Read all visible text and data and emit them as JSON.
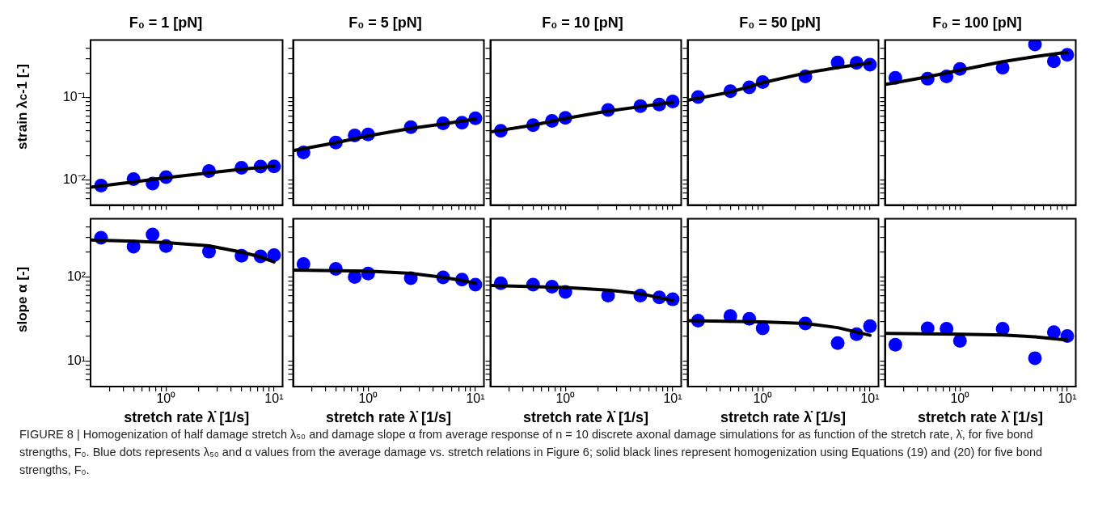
{
  "chart_data": [
    {
      "type": "scatter",
      "title": "F₀ = 1 [pN]",
      "ylabel": "strain λ$_{c}$-1 [-]",
      "log": "xy",
      "tick_labels": "y",
      "xlim": [
        0.2,
        12
      ],
      "ylim": [
        0.005,
        0.5
      ],
      "xticks": [
        {
          "value": 0.3,
          "label": null
        },
        {
          "value": 0.4,
          "label": null
        },
        {
          "value": 0.5,
          "label": null
        },
        {
          "value": 0.6,
          "label": null
        },
        {
          "value": 0.7,
          "label": null
        },
        {
          "value": 0.8,
          "label": null
        },
        {
          "value": 0.9,
          "label": null
        },
        {
          "value": 1,
          "label": null
        },
        {
          "value": 2,
          "label": null
        },
        {
          "value": 3,
          "label": null
        },
        {
          "value": 4,
          "label": null
        },
        {
          "value": 5,
          "label": null
        },
        {
          "value": 6,
          "label": null
        },
        {
          "value": 7,
          "label": null
        },
        {
          "value": 8,
          "label": null
        },
        {
          "value": 9,
          "label": null
        },
        {
          "value": 10,
          "label": null
        }
      ],
      "yticks": [
        {
          "value": 0.006,
          "label": null
        },
        {
          "value": 0.007,
          "label": null
        },
        {
          "value": 0.008,
          "label": null
        },
        {
          "value": 0.009,
          "label": null
        },
        {
          "value": 0.01,
          "label": "10⁻²"
        },
        {
          "value": 0.02,
          "label": null
        },
        {
          "value": 0.03,
          "label": null
        },
        {
          "value": 0.04,
          "label": null
        },
        {
          "value": 0.05,
          "label": null
        },
        {
          "value": 0.06,
          "label": null
        },
        {
          "value": 0.07,
          "label": null
        },
        {
          "value": 0.08,
          "label": null
        },
        {
          "value": 0.09,
          "label": null
        },
        {
          "value": 0.1,
          "label": "10⁻¹"
        },
        {
          "value": 0.2,
          "label": null
        },
        {
          "value": 0.3,
          "label": null
        },
        {
          "value": 0.4,
          "label": null
        }
      ],
      "x": [
        0.25,
        0.5,
        0.75,
        1,
        2.5,
        5,
        7.5,
        10
      ],
      "series": [
        {
          "type": "scatter",
          "color": "#0000ff",
          "marker": "circle",
          "values": [
            0.0086,
            0.0103,
            0.0091,
            0.0109,
            0.0129,
            0.0141,
            0.0146,
            0.0147
          ]
        },
        {
          "type": "line",
          "color": "#000000",
          "marker": "none",
          "line_style": "solid",
          "x": [
            0.2,
            0.5,
            1,
            2.5,
            5,
            10
          ],
          "values": [
            0.0082,
            0.0095,
            0.0107,
            0.0123,
            0.0136,
            0.0148
          ]
        }
      ],
      "annotations": [
        "FIGURE 8 | Homogenization of half damage stretch λ₅₀ and damage slope α from average response of n = 10 discrete axonal damage simulations for as function of the stretch rate, λ̇, for five bond strengths, F₀. Blue dots represents λ₅₀ and α values from the average damage vs. stretch relations in Figure 6; solid black lines represent homogenization using Equations (19) and (20) for five bond strengths, F₀."
      ]
    },
    {
      "type": "scatter",
      "title": "F₀ = 5 [pN]",
      "log": "xy",
      "tick_labels": false,
      "xlim": [
        0.2,
        12
      ],
      "ylim": [
        0.005,
        0.5
      ],
      "xticks": [
        {
          "value": 0.3,
          "label": null
        },
        {
          "value": 0.4,
          "label": null
        },
        {
          "value": 0.5,
          "label": null
        },
        {
          "value": 0.6,
          "label": null
        },
        {
          "value": 0.7,
          "label": null
        },
        {
          "value": 0.8,
          "label": null
        },
        {
          "value": 0.9,
          "label": null
        },
        {
          "value": 1,
          "label": null
        },
        {
          "value": 2,
          "label": null
        },
        {
          "value": 3,
          "label": null
        },
        {
          "value": 4,
          "label": null
        },
        {
          "value": 5,
          "label": null
        },
        {
          "value": 6,
          "label": null
        },
        {
          "value": 7,
          "label": null
        },
        {
          "value": 8,
          "label": null
        },
        {
          "value": 9,
          "label": null
        },
        {
          "value": 10,
          "label": null
        }
      ],
      "yticks": [
        {
          "value": 0.006,
          "label": null
        },
        {
          "value": 0.007,
          "label": null
        },
        {
          "value": 0.008,
          "label": null
        },
        {
          "value": 0.009,
          "label": null
        },
        {
          "value": 0.01,
          "label": null
        },
        {
          "value": 0.02,
          "label": null
        },
        {
          "value": 0.03,
          "label": null
        },
        {
          "value": 0.04,
          "label": null
        },
        {
          "value": 0.05,
          "label": null
        },
        {
          "value": 0.06,
          "label": null
        },
        {
          "value": 0.07,
          "label": null
        },
        {
          "value": 0.08,
          "label": null
        },
        {
          "value": 0.09,
          "label": null
        },
        {
          "value": 0.1,
          "label": null
        },
        {
          "value": 0.2,
          "label": null
        },
        {
          "value": 0.3,
          "label": null
        },
        {
          "value": 0.4,
          "label": null
        }
      ],
      "x": [
        0.25,
        0.5,
        0.75,
        1,
        2.5,
        5,
        7.5,
        10
      ],
      "series": [
        {
          "type": "scatter",
          "color": "#0000ff",
          "marker": "circle",
          "values": [
            0.0217,
            0.0287,
            0.0349,
            0.0358,
            0.044,
            0.049,
            0.0499,
            0.0565
          ]
        },
        {
          "type": "line",
          "color": "#000000",
          "marker": "none",
          "line_style": "solid",
          "x": [
            0.2,
            0.5,
            1,
            2.5,
            5,
            10
          ],
          "values": [
            0.0228,
            0.0285,
            0.0345,
            0.0425,
            0.048,
            0.055
          ]
        }
      ]
    },
    {
      "type": "scatter",
      "title": "F₀ = 10 [pN]",
      "log": "xy",
      "tick_labels": false,
      "xlim": [
        0.2,
        12
      ],
      "ylim": [
        0.005,
        0.5
      ],
      "xticks": [
        {
          "value": 0.3,
          "label": null
        },
        {
          "value": 0.4,
          "label": null
        },
        {
          "value": 0.5,
          "label": null
        },
        {
          "value": 0.6,
          "label": null
        },
        {
          "value": 0.7,
          "label": null
        },
        {
          "value": 0.8,
          "label": null
        },
        {
          "value": 0.9,
          "label": null
        },
        {
          "value": 1,
          "label": null
        },
        {
          "value": 2,
          "label": null
        },
        {
          "value": 3,
          "label": null
        },
        {
          "value": 4,
          "label": null
        },
        {
          "value": 5,
          "label": null
        },
        {
          "value": 6,
          "label": null
        },
        {
          "value": 7,
          "label": null
        },
        {
          "value": 8,
          "label": null
        },
        {
          "value": 9,
          "label": null
        },
        {
          "value": 10,
          "label": null
        }
      ],
      "yticks": [
        {
          "value": 0.006,
          "label": null
        },
        {
          "value": 0.007,
          "label": null
        },
        {
          "value": 0.008,
          "label": null
        },
        {
          "value": 0.009,
          "label": null
        },
        {
          "value": 0.01,
          "label": null
        },
        {
          "value": 0.02,
          "label": null
        },
        {
          "value": 0.03,
          "label": null
        },
        {
          "value": 0.04,
          "label": null
        },
        {
          "value": 0.05,
          "label": null
        },
        {
          "value": 0.06,
          "label": null
        },
        {
          "value": 0.07,
          "label": null
        },
        {
          "value": 0.08,
          "label": null
        },
        {
          "value": 0.09,
          "label": null
        },
        {
          "value": 0.1,
          "label": null
        },
        {
          "value": 0.2,
          "label": null
        },
        {
          "value": 0.3,
          "label": null
        },
        {
          "value": 0.4,
          "label": null
        }
      ],
      "x": [
        0.25,
        0.5,
        0.75,
        1,
        2.5,
        5,
        7.5,
        10
      ],
      "series": [
        {
          "type": "scatter",
          "color": "#0000ff",
          "marker": "circle",
          "values": [
            0.0397,
            0.0466,
            0.0524,
            0.057,
            0.0712,
            0.0792,
            0.0826,
            0.0899
          ]
        },
        {
          "type": "line",
          "color": "#000000",
          "marker": "none",
          "line_style": "solid",
          "x": [
            0.2,
            0.5,
            1,
            2.5,
            5,
            10
          ],
          "values": [
            0.0385,
            0.0465,
            0.056,
            0.069,
            0.078,
            0.088
          ]
        }
      ]
    },
    {
      "type": "scatter",
      "title": "F₀ = 50 [pN]",
      "log": "xy",
      "tick_labels": false,
      "xlim": [
        0.2,
        12
      ],
      "ylim": [
        0.005,
        0.5
      ],
      "xticks": [
        {
          "value": 0.3,
          "label": null
        },
        {
          "value": 0.4,
          "label": null
        },
        {
          "value": 0.5,
          "label": null
        },
        {
          "value": 0.6,
          "label": null
        },
        {
          "value": 0.7,
          "label": null
        },
        {
          "value": 0.8,
          "label": null
        },
        {
          "value": 0.9,
          "label": null
        },
        {
          "value": 1,
          "label": null
        },
        {
          "value": 2,
          "label": null
        },
        {
          "value": 3,
          "label": null
        },
        {
          "value": 4,
          "label": null
        },
        {
          "value": 5,
          "label": null
        },
        {
          "value": 6,
          "label": null
        },
        {
          "value": 7,
          "label": null
        },
        {
          "value": 8,
          "label": null
        },
        {
          "value": 9,
          "label": null
        },
        {
          "value": 10,
          "label": null
        }
      ],
      "yticks": [
        {
          "value": 0.006,
          "label": null
        },
        {
          "value": 0.007,
          "label": null
        },
        {
          "value": 0.008,
          "label": null
        },
        {
          "value": 0.009,
          "label": null
        },
        {
          "value": 0.01,
          "label": null
        },
        {
          "value": 0.02,
          "label": null
        },
        {
          "value": 0.03,
          "label": null
        },
        {
          "value": 0.04,
          "label": null
        },
        {
          "value": 0.05,
          "label": null
        },
        {
          "value": 0.06,
          "label": null
        },
        {
          "value": 0.07,
          "label": null
        },
        {
          "value": 0.08,
          "label": null
        },
        {
          "value": 0.09,
          "label": null
        },
        {
          "value": 0.1,
          "label": null
        },
        {
          "value": 0.2,
          "label": null
        },
        {
          "value": 0.3,
          "label": null
        },
        {
          "value": 0.4,
          "label": null
        }
      ],
      "x": [
        0.25,
        0.5,
        0.75,
        1,
        2.5,
        5,
        7.5,
        10
      ],
      "series": [
        {
          "type": "scatter",
          "color": "#0000ff",
          "marker": "circle",
          "values": [
            0.102,
            0.12,
            0.134,
            0.155,
            0.181,
            0.268,
            0.265,
            0.252
          ]
        },
        {
          "type": "line",
          "color": "#000000",
          "marker": "none",
          "line_style": "solid",
          "x": [
            0.2,
            0.5,
            1,
            2.5,
            5,
            10
          ],
          "values": [
            0.093,
            0.117,
            0.152,
            0.199,
            0.233,
            0.265
          ]
        }
      ]
    },
    {
      "type": "scatter",
      "title": "F₀ = 100 [pN]",
      "log": "xy",
      "tick_labels": false,
      "xlim": [
        0.2,
        12
      ],
      "ylim": [
        0.005,
        0.5
      ],
      "xticks": [
        {
          "value": 0.3,
          "label": null
        },
        {
          "value": 0.4,
          "label": null
        },
        {
          "value": 0.5,
          "label": null
        },
        {
          "value": 0.6,
          "label": null
        },
        {
          "value": 0.7,
          "label": null
        },
        {
          "value": 0.8,
          "label": null
        },
        {
          "value": 0.9,
          "label": null
        },
        {
          "value": 1,
          "label": null
        },
        {
          "value": 2,
          "label": null
        },
        {
          "value": 3,
          "label": null
        },
        {
          "value": 4,
          "label": null
        },
        {
          "value": 5,
          "label": null
        },
        {
          "value": 6,
          "label": null
        },
        {
          "value": 7,
          "label": null
        },
        {
          "value": 8,
          "label": null
        },
        {
          "value": 9,
          "label": null
        },
        {
          "value": 10,
          "label": null
        }
      ],
      "yticks": [
        {
          "value": 0.006,
          "label": null
        },
        {
          "value": 0.007,
          "label": null
        },
        {
          "value": 0.008,
          "label": null
        },
        {
          "value": 0.009,
          "label": null
        },
        {
          "value": 0.01,
          "label": null
        },
        {
          "value": 0.02,
          "label": null
        },
        {
          "value": 0.03,
          "label": null
        },
        {
          "value": 0.04,
          "label": null
        },
        {
          "value": 0.05,
          "label": null
        },
        {
          "value": 0.06,
          "label": null
        },
        {
          "value": 0.07,
          "label": null
        },
        {
          "value": 0.08,
          "label": null
        },
        {
          "value": 0.09,
          "label": null
        },
        {
          "value": 0.1,
          "label": null
        },
        {
          "value": 0.2,
          "label": null
        },
        {
          "value": 0.3,
          "label": null
        },
        {
          "value": 0.4,
          "label": null
        }
      ],
      "x": [
        0.25,
        0.5,
        0.75,
        1,
        2.5,
        5,
        7.5,
        10
      ],
      "series": [
        {
          "type": "scatter",
          "color": "#0000ff",
          "marker": "circle",
          "values": [
            0.174,
            0.17,
            0.181,
            0.224,
            0.231,
            0.442,
            0.277,
            0.332
          ]
        },
        {
          "type": "line",
          "color": "#000000",
          "marker": "none",
          "line_style": "solid",
          "x": [
            0.2,
            0.5,
            1,
            2.5,
            5,
            10
          ],
          "values": [
            0.145,
            0.179,
            0.216,
            0.274,
            0.315,
            0.357
          ]
        }
      ]
    },
    {
      "type": "scatter",
      "xlabel": "stretch rate λ̇ [1/s]",
      "ylabel": "slope α [-]",
      "log": "xy",
      "xlim": [
        0.2,
        12
      ],
      "ylim": [
        5,
        500
      ],
      "xticks": [
        {
          "value": 0.3,
          "label": null
        },
        {
          "value": 0.4,
          "label": null
        },
        {
          "value": 0.5,
          "label": null
        },
        {
          "value": 0.6,
          "label": null
        },
        {
          "value": 0.7,
          "label": null
        },
        {
          "value": 0.8,
          "label": null
        },
        {
          "value": 0.9,
          "label": null
        },
        {
          "value": 1,
          "label": "10⁰"
        },
        {
          "value": 2,
          "label": null
        },
        {
          "value": 3,
          "label": null
        },
        {
          "value": 4,
          "label": null
        },
        {
          "value": 5,
          "label": null
        },
        {
          "value": 6,
          "label": null
        },
        {
          "value": 7,
          "label": null
        },
        {
          "value": 8,
          "label": null
        },
        {
          "value": 9,
          "label": null
        },
        {
          "value": 10,
          "label": "10¹"
        }
      ],
      "yticks": [
        {
          "value": 6,
          "label": null
        },
        {
          "value": 7,
          "label": null
        },
        {
          "value": 8,
          "label": null
        },
        {
          "value": 9,
          "label": null
        },
        {
          "value": 10,
          "label": "10¹"
        },
        {
          "value": 20,
          "label": null
        },
        {
          "value": 30,
          "label": null
        },
        {
          "value": 40,
          "label": null
        },
        {
          "value": 50,
          "label": null
        },
        {
          "value": 60,
          "label": null
        },
        {
          "value": 70,
          "label": null
        },
        {
          "value": 80,
          "label": null
        },
        {
          "value": 90,
          "label": null
        },
        {
          "value": 100,
          "label": "10²"
        },
        {
          "value": 200,
          "label": null
        },
        {
          "value": 300,
          "label": null
        },
        {
          "value": 400,
          "label": null
        }
      ],
      "x": [
        0.25,
        0.5,
        0.75,
        1,
        2.5,
        5,
        7.5,
        10
      ],
      "series": [
        {
          "type": "scatter",
          "color": "#0000ff",
          "marker": "circle",
          "values": [
            297,
            232,
            325,
            236,
            203,
            181,
            178,
            184
          ]
        },
        {
          "type": "line",
          "color": "#000000",
          "marker": "none",
          "line_style": "solid",
          "x": [
            0.2,
            0.5,
            1,
            2.5,
            5,
            7.5,
            10
          ],
          "values": [
            279,
            270,
            260,
            238,
            200,
            175,
            153
          ]
        }
      ]
    },
    {
      "type": "scatter",
      "xlabel": "stretch rate λ̇ [1/s]",
      "log": "xy",
      "tick_labels": "x",
      "xlim": [
        0.2,
        12
      ],
      "ylim": [
        5,
        500
      ],
      "xticks": [
        {
          "value": 0.3,
          "label": null
        },
        {
          "value": 0.4,
          "label": null
        },
        {
          "value": 0.5,
          "label": null
        },
        {
          "value": 0.6,
          "label": null
        },
        {
          "value": 0.7,
          "label": null
        },
        {
          "value": 0.8,
          "label": null
        },
        {
          "value": 0.9,
          "label": null
        },
        {
          "value": 1,
          "label": "10⁰"
        },
        {
          "value": 2,
          "label": null
        },
        {
          "value": 3,
          "label": null
        },
        {
          "value": 4,
          "label": null
        },
        {
          "value": 5,
          "label": null
        },
        {
          "value": 6,
          "label": null
        },
        {
          "value": 7,
          "label": null
        },
        {
          "value": 8,
          "label": null
        },
        {
          "value": 9,
          "label": null
        },
        {
          "value": 10,
          "label": "10¹"
        }
      ],
      "yticks": [
        {
          "value": 6,
          "label": null
        },
        {
          "value": 7,
          "label": null
        },
        {
          "value": 8,
          "label": null
        },
        {
          "value": 9,
          "label": null
        },
        {
          "value": 10,
          "label": null
        },
        {
          "value": 20,
          "label": null
        },
        {
          "value": 30,
          "label": null
        },
        {
          "value": 40,
          "label": null
        },
        {
          "value": 50,
          "label": null
        },
        {
          "value": 60,
          "label": null
        },
        {
          "value": 70,
          "label": null
        },
        {
          "value": 80,
          "label": null
        },
        {
          "value": 90,
          "label": null
        },
        {
          "value": 100,
          "label": null
        },
        {
          "value": 200,
          "label": null
        },
        {
          "value": 300,
          "label": null
        },
        {
          "value": 400,
          "label": null
        }
      ],
      "x": [
        0.25,
        0.5,
        0.75,
        1,
        2.5,
        5,
        7.5,
        10
      ],
      "series": [
        {
          "type": "scatter",
          "color": "#0000ff",
          "marker": "circle",
          "values": [
            144,
            126,
            101,
            111,
            98,
            100,
            94,
            82
          ]
        },
        {
          "type": "line",
          "color": "#000000",
          "marker": "none",
          "line_style": "solid",
          "x": [
            0.2,
            1,
            2.5,
            5,
            7.5,
            10
          ],
          "values": [
            122,
            119,
            112,
            100,
            92,
            85
          ]
        }
      ]
    },
    {
      "type": "scatter",
      "xlabel": "stretch rate λ̇ [1/s]",
      "log": "xy",
      "tick_labels": "x",
      "xlim": [
        0.2,
        12
      ],
      "ylim": [
        5,
        500
      ],
      "xticks": [
        {
          "value": 0.3,
          "label": null
        },
        {
          "value": 0.4,
          "label": null
        },
        {
          "value": 0.5,
          "label": null
        },
        {
          "value": 0.6,
          "label": null
        },
        {
          "value": 0.7,
          "label": null
        },
        {
          "value": 0.8,
          "label": null
        },
        {
          "value": 0.9,
          "label": null
        },
        {
          "value": 1,
          "label": "10⁰"
        },
        {
          "value": 2,
          "label": null
        },
        {
          "value": 3,
          "label": null
        },
        {
          "value": 4,
          "label": null
        },
        {
          "value": 5,
          "label": null
        },
        {
          "value": 6,
          "label": null
        },
        {
          "value": 7,
          "label": null
        },
        {
          "value": 8,
          "label": null
        },
        {
          "value": 9,
          "label": null
        },
        {
          "value": 10,
          "label": "10¹"
        }
      ],
      "yticks": [
        {
          "value": 6,
          "label": null
        },
        {
          "value": 7,
          "label": null
        },
        {
          "value": 8,
          "label": null
        },
        {
          "value": 9,
          "label": null
        },
        {
          "value": 10,
          "label": null
        },
        {
          "value": 20,
          "label": null
        },
        {
          "value": 30,
          "label": null
        },
        {
          "value": 40,
          "label": null
        },
        {
          "value": 50,
          "label": null
        },
        {
          "value": 60,
          "label": null
        },
        {
          "value": 70,
          "label": null
        },
        {
          "value": 80,
          "label": null
        },
        {
          "value": 90,
          "label": null
        },
        {
          "value": 100,
          "label": null
        },
        {
          "value": 200,
          "label": null
        },
        {
          "value": 300,
          "label": null
        },
        {
          "value": 400,
          "label": null
        }
      ],
      "x": [
        0.25,
        0.5,
        0.75,
        1,
        2.5,
        5,
        7.5,
        10
      ],
      "series": [
        {
          "type": "scatter",
          "color": "#0000ff",
          "marker": "circle",
          "values": [
            85.3,
            81.8,
            77.6,
            67,
            60.8,
            60.8,
            57.7,
            54.8
          ]
        },
        {
          "type": "line",
          "color": "#000000",
          "marker": "none",
          "line_style": "solid",
          "x": [
            0.2,
            1,
            2.5,
            5,
            10
          ],
          "values": [
            80,
            76,
            70.7,
            64,
            53
          ]
        }
      ]
    },
    {
      "type": "scatter",
      "xlabel": "stretch rate λ̇ [1/s]",
      "log": "xy",
      "tick_labels": "x",
      "xlim": [
        0.2,
        12
      ],
      "ylim": [
        5,
        500
      ],
      "xticks": [
        {
          "value": 0.3,
          "label": null
        },
        {
          "value": 0.4,
          "label": null
        },
        {
          "value": 0.5,
          "label": null
        },
        {
          "value": 0.6,
          "label": null
        },
        {
          "value": 0.7,
          "label": null
        },
        {
          "value": 0.8,
          "label": null
        },
        {
          "value": 0.9,
          "label": null
        },
        {
          "value": 1,
          "label": "10⁰"
        },
        {
          "value": 2,
          "label": null
        },
        {
          "value": 3,
          "label": null
        },
        {
          "value": 4,
          "label": null
        },
        {
          "value": 5,
          "label": null
        },
        {
          "value": 6,
          "label": null
        },
        {
          "value": 7,
          "label": null
        },
        {
          "value": 8,
          "label": null
        },
        {
          "value": 9,
          "label": null
        },
        {
          "value": 10,
          "label": "10¹"
        }
      ],
      "yticks": [
        {
          "value": 6,
          "label": null
        },
        {
          "value": 7,
          "label": null
        },
        {
          "value": 8,
          "label": null
        },
        {
          "value": 9,
          "label": null
        },
        {
          "value": 10,
          "label": null
        },
        {
          "value": 20,
          "label": null
        },
        {
          "value": 30,
          "label": null
        },
        {
          "value": 40,
          "label": null
        },
        {
          "value": 50,
          "label": null
        },
        {
          "value": 60,
          "label": null
        },
        {
          "value": 70,
          "label": null
        },
        {
          "value": 80,
          "label": null
        },
        {
          "value": 90,
          "label": null
        },
        {
          "value": 100,
          "label": null
        },
        {
          "value": 200,
          "label": null
        },
        {
          "value": 300,
          "label": null
        },
        {
          "value": 400,
          "label": null
        }
      ],
      "x": [
        0.25,
        0.5,
        0.75,
        1,
        2.5,
        5,
        7.5,
        10
      ],
      "series": [
        {
          "type": "scatter",
          "color": "#0000ff",
          "marker": "circle",
          "values": [
            30.5,
            34.6,
            32.1,
            24.7,
            28.3,
            16.5,
            21,
            26.2
          ]
        },
        {
          "type": "line",
          "color": "#000000",
          "marker": "none",
          "line_style": "solid",
          "x": [
            0.2,
            1,
            2.5,
            5,
            10
          ],
          "values": [
            30.5,
            29.5,
            28.3,
            25.2,
            20.4
          ]
        }
      ]
    },
    {
      "type": "scatter",
      "xlabel": "stretch rate λ̇ [1/s]",
      "log": "xy",
      "tick_labels": "x",
      "xlim": [
        0.2,
        12
      ],
      "ylim": [
        5,
        500
      ],
      "xticks": [
        {
          "value": 0.3,
          "label": null
        },
        {
          "value": 0.4,
          "label": null
        },
        {
          "value": 0.5,
          "label": null
        },
        {
          "value": 0.6,
          "label": null
        },
        {
          "value": 0.7,
          "label": null
        },
        {
          "value": 0.8,
          "label": null
        },
        {
          "value": 0.9,
          "label": null
        },
        {
          "value": 1,
          "label": "10⁰"
        },
        {
          "value": 2,
          "label": null
        },
        {
          "value": 3,
          "label": null
        },
        {
          "value": 4,
          "label": null
        },
        {
          "value": 5,
          "label": null
        },
        {
          "value": 6,
          "label": null
        },
        {
          "value": 7,
          "label": null
        },
        {
          "value": 8,
          "label": null
        },
        {
          "value": 9,
          "label": null
        },
        {
          "value": 10,
          "label": "10¹"
        }
      ],
      "yticks": [
        {
          "value": 6,
          "label": null
        },
        {
          "value": 7,
          "label": null
        },
        {
          "value": 8,
          "label": null
        },
        {
          "value": 9,
          "label": null
        },
        {
          "value": 10,
          "label": null
        },
        {
          "value": 20,
          "label": null
        },
        {
          "value": 30,
          "label": null
        },
        {
          "value": 40,
          "label": null
        },
        {
          "value": 50,
          "label": null
        },
        {
          "value": 60,
          "label": null
        },
        {
          "value": 70,
          "label": null
        },
        {
          "value": 80,
          "label": null
        },
        {
          "value": 90,
          "label": null
        },
        {
          "value": 100,
          "label": null
        },
        {
          "value": 200,
          "label": null
        },
        {
          "value": 300,
          "label": null
        },
        {
          "value": 400,
          "label": null
        }
      ],
      "x": [
        0.25,
        0.5,
        0.75,
        1,
        2.5,
        5,
        7.5,
        10
      ],
      "series": [
        {
          "type": "scatter",
          "color": "#0000ff",
          "marker": "circle",
          "values": [
            15.8,
            24.7,
            24.4,
            17.5,
            24.4,
            10.9,
            22.2,
            20
          ]
        },
        {
          "type": "line",
          "color": "#000000",
          "marker": "none",
          "line_style": "solid",
          "x": [
            0.2,
            1,
            2.5,
            5,
            10
          ],
          "values": [
            21.5,
            21,
            20.6,
            19.6,
            17.9
          ]
        }
      ]
    }
  ]
}
